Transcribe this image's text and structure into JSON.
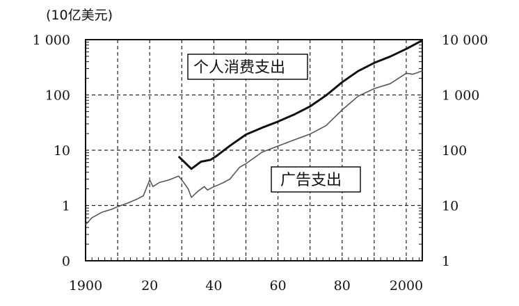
{
  "chart_data": {
    "type": "line",
    "unit_label": "(10亿美元)",
    "x_range": [
      1900,
      2005
    ],
    "x_ticks": [
      {
        "value": 1900,
        "label": "1900"
      },
      {
        "value": 1920,
        "label": "20"
      },
      {
        "value": 1940,
        "label": "40"
      },
      {
        "value": 1960,
        "label": "60"
      },
      {
        "value": 1980,
        "label": "80"
      },
      {
        "value": 2000,
        "label": "2000"
      }
    ],
    "left_axis": {
      "scale": "log",
      "range": [
        0.1,
        1000
      ],
      "ticks": [
        {
          "value": 0.1,
          "label": "0"
        },
        {
          "value": 1,
          "label": "1"
        },
        {
          "value": 10,
          "label": "10"
        },
        {
          "value": 100,
          "label": "100"
        },
        {
          "value": 1000,
          "label": "1 000"
        }
      ]
    },
    "right_axis": {
      "scale": "log",
      "range": [
        1,
        10000
      ],
      "ticks": [
        {
          "value": 1,
          "label": "1"
        },
        {
          "value": 10,
          "label": "10"
        },
        {
          "value": 100,
          "label": "100"
        },
        {
          "value": 1000,
          "label": "1 000"
        },
        {
          "value": 10000,
          "label": "10 000"
        }
      ]
    },
    "grid": true,
    "series": [
      {
        "name": "个人消费支出",
        "axis": "right",
        "color": "#111111",
        "points": [
          [
            1929,
            77
          ],
          [
            1933,
            46
          ],
          [
            1936,
            62
          ],
          [
            1939,
            67
          ],
          [
            1941,
            80
          ],
          [
            1945,
            120
          ],
          [
            1950,
            192
          ],
          [
            1955,
            255
          ],
          [
            1960,
            330
          ],
          [
            1965,
            440
          ],
          [
            1970,
            620
          ],
          [
            1975,
            980
          ],
          [
            1980,
            1700
          ],
          [
            1985,
            2700
          ],
          [
            1990,
            3800
          ],
          [
            1995,
            4950
          ],
          [
            2000,
            6800
          ],
          [
            2005,
            9700
          ]
        ]
      },
      {
        "name": "广告支出",
        "axis": "left",
        "color": "#555555",
        "points": [
          [
            1900,
            0.45
          ],
          [
            1902,
            0.6
          ],
          [
            1905,
            0.75
          ],
          [
            1908,
            0.85
          ],
          [
            1910,
            0.95
          ],
          [
            1913,
            1.1
          ],
          [
            1916,
            1.3
          ],
          [
            1918,
            1.5
          ],
          [
            1920,
            2.9
          ],
          [
            1921,
            2.2
          ],
          [
            1923,
            2.6
          ],
          [
            1926,
            2.9
          ],
          [
            1929,
            3.4
          ],
          [
            1930,
            2.9
          ],
          [
            1932,
            2.0
          ],
          [
            1933,
            1.4
          ],
          [
            1935,
            1.8
          ],
          [
            1937,
            2.2
          ],
          [
            1938,
            1.9
          ],
          [
            1940,
            2.2
          ],
          [
            1941,
            2.3
          ],
          [
            1943,
            2.6
          ],
          [
            1945,
            3.0
          ],
          [
            1948,
            4.9
          ],
          [
            1950,
            5.7
          ],
          [
            1955,
            9.2
          ],
          [
            1960,
            11.9
          ],
          [
            1965,
            15.3
          ],
          [
            1970,
            19.6
          ],
          [
            1975,
            27.9
          ],
          [
            1980,
            53.6
          ],
          [
            1985,
            94.8
          ],
          [
            1990,
            130
          ],
          [
            1995,
            160
          ],
          [
            2000,
            247
          ],
          [
            2002,
            237
          ],
          [
            2005,
            272
          ]
        ]
      }
    ]
  }
}
